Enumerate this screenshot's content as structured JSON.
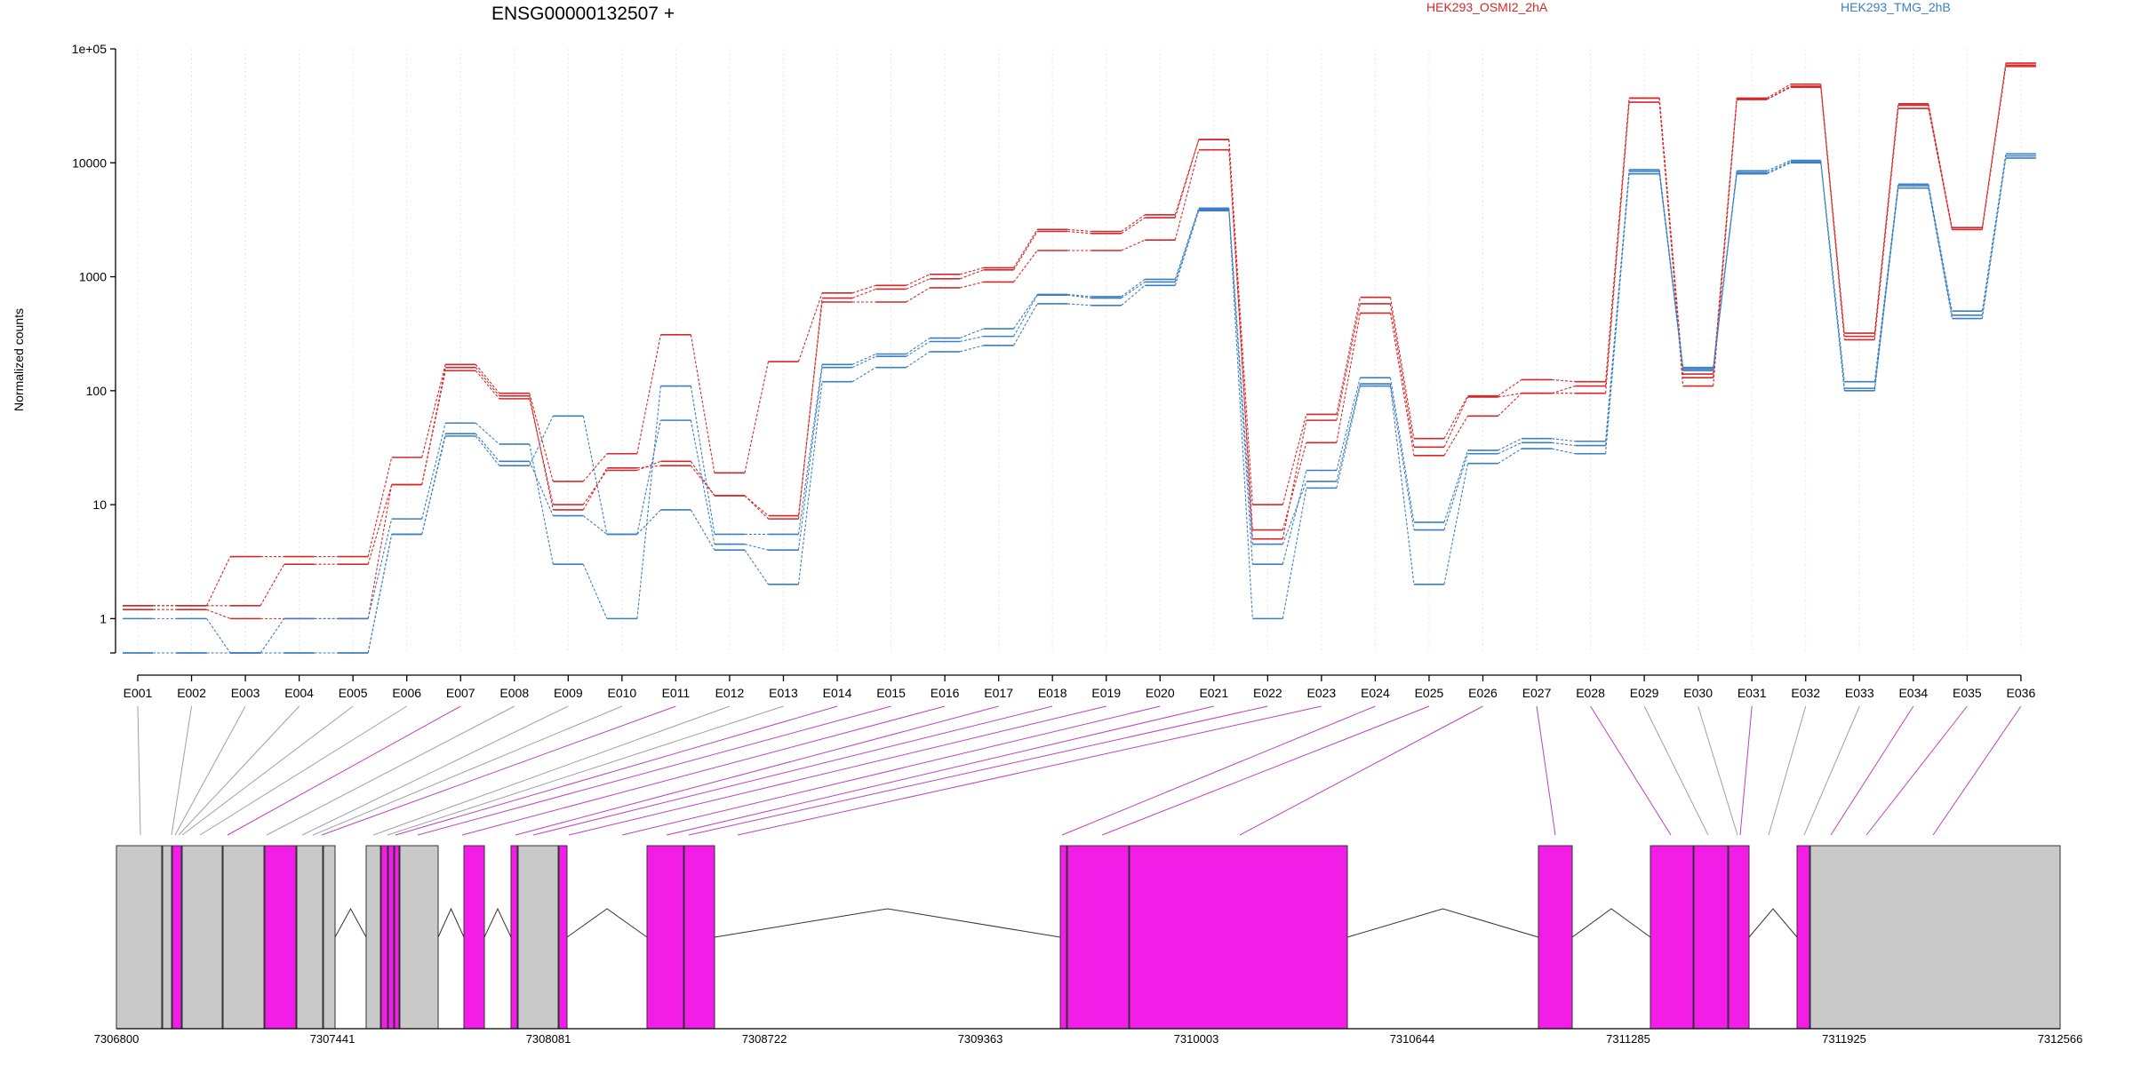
{
  "chart_data": {
    "type": "line",
    "title": "ENSG00000132507 +",
    "ylabel": "Normalized counts",
    "xlabel": "",
    "y_scale": "log",
    "ylim": [
      0.5,
      100000
    ],
    "y_ticks": [
      1,
      10,
      100,
      1000,
      10000,
      100000
    ],
    "y_tick_labels": [
      "1",
      "10",
      "100",
      "1000",
      "10000",
      "1e+05"
    ],
    "grid": "vertical dotted lines at each exon",
    "legend_placement": "top",
    "legend": [
      {
        "name": "HEK293_OSMI2_2hA",
        "color": "#d62728"
      },
      {
        "name": "HEK293_TMG_2hB",
        "color": "#3a7fc2"
      }
    ],
    "categories": [
      "E001",
      "E002",
      "E003",
      "E004",
      "E005",
      "E006",
      "E007",
      "E008",
      "E009",
      "E010",
      "E011",
      "E012",
      "E013",
      "E014",
      "E015",
      "E016",
      "E017",
      "E018",
      "E019",
      "E020",
      "E021",
      "E022",
      "E023",
      "E024",
      "E025",
      "E026",
      "E027",
      "E028",
      "E029",
      "E030",
      "E031",
      "E032",
      "E033",
      "E034",
      "E035",
      "E036"
    ],
    "series": [
      {
        "name": "HEK293_OSMI2_2hA",
        "color": "#d62728",
        "values": [
          1.3,
          1.3,
          1.3,
          3.0,
          3.0,
          15,
          150,
          85,
          10,
          20,
          24,
          12,
          8,
          600,
          600,
          800,
          900,
          1700,
          1700,
          2100,
          13000,
          6,
          35,
          480,
          27,
          60,
          95,
          95,
          34000,
          110,
          36000,
          47000,
          280,
          30000,
          2600,
          70000
        ]
      },
      {
        "name": "HEK293_OSMI2_2hA",
        "color": "#d62728",
        "values": [
          1.3,
          1.3,
          3.5,
          3.5,
          3.5,
          26,
          170,
          95,
          16,
          28,
          310,
          19,
          180,
          720,
          840,
          1050,
          1200,
          2600,
          2500,
          3500,
          16000,
          10,
          62,
          660,
          38,
          90,
          125,
          120,
          37000,
          140,
          37000,
          49000,
          320,
          33000,
          2700,
          75000
        ]
      },
      {
        "name": "HEK293_OSMI2_2hA",
        "color": "#d62728",
        "values": [
          1.2,
          1.2,
          1.0,
          1.0,
          1.0,
          15,
          160,
          90,
          9,
          21,
          22,
          12,
          7.5,
          650,
          780,
          960,
          1150,
          2500,
          2400,
          3300,
          16000,
          5,
          55,
          580,
          32,
          88,
          95,
          110,
          37000,
          130,
          36000,
          46000,
          300,
          32000,
          2600,
          72000
        ]
      },
      {
        "name": "HEK293_TMG_2hB",
        "color": "#3a7fc2",
        "values": [
          0.5,
          0.5,
          0.5,
          0.5,
          0.5,
          5.5,
          40,
          22,
          60,
          5.5,
          9,
          4,
          2,
          120,
          160,
          220,
          250,
          580,
          560,
          840,
          3800,
          1,
          14,
          110,
          2,
          23,
          31,
          28,
          8000,
          150,
          8000,
          10000,
          100,
          6000,
          430,
          11000
        ]
      },
      {
        "name": "HEK293_TMG_2hB",
        "color": "#3a7fc2",
        "values": [
          1.0,
          1.0,
          0.5,
          1.0,
          1.0,
          7.5,
          52,
          34,
          3,
          1,
          110,
          5.5,
          5.5,
          170,
          210,
          290,
          350,
          700,
          670,
          950,
          4000,
          3,
          20,
          130,
          7,
          30,
          38,
          36,
          8700,
          160,
          8500,
          10500,
          120,
          6500,
          500,
          12000
        ]
      },
      {
        "name": "HEK293_TMG_2hB",
        "color": "#3a7fc2",
        "values": [
          0.5,
          0.5,
          0.5,
          0.5,
          0.5,
          5.5,
          42,
          24,
          8,
          5.5,
          55,
          4.5,
          4,
          160,
          200,
          270,
          300,
          690,
          650,
          900,
          3900,
          4.5,
          16,
          115,
          6,
          28,
          35,
          33,
          8400,
          155,
          8200,
          10200,
          105,
          6300,
          460,
          11500
        ]
      }
    ],
    "exon_coordinate_ticks": [
      "7306800",
      "7307441",
      "7308081",
      "7308722",
      "7309363",
      "7310003",
      "7310644",
      "7311285",
      "7311925",
      "7312566"
    ],
    "exon_track_colors": {
      "significant": "#f21ee8",
      "normal": "#c9c9c9",
      "connector": "#c040c0"
    },
    "exon_significant": [
      false,
      false,
      false,
      false,
      false,
      false,
      true,
      false,
      false,
      false,
      true,
      false,
      false,
      true,
      true,
      true,
      true,
      true,
      true,
      true,
      true,
      true,
      true,
      true,
      true,
      true,
      true,
      true,
      false,
      false,
      true,
      false,
      false,
      true,
      true,
      true
    ]
  }
}
